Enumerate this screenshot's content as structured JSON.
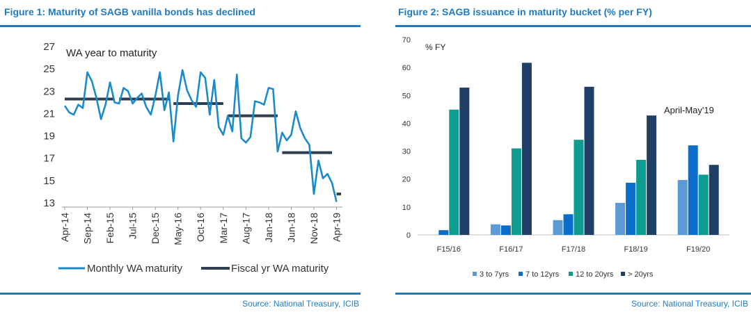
{
  "colors": {
    "accent": "#1F7BC1",
    "monthly_line": "#1B8AC9",
    "fiscal_line": "#2E3D4F",
    "bar_3_7": "#5B9BD5",
    "bar_7_12": "#0B6FC9",
    "bar_12_20": "#0E9C91",
    "bar_gt20": "#1F3F66"
  },
  "figure1": {
    "title": "Figure 1: Maturity of SAGB vanilla bonds has declined",
    "source": "Source: National Treasury, ICIB"
  },
  "figure2": {
    "title": "Figure 2: SAGB issuance in maturity bucket (% per FY)",
    "source": "Source: National Treasury, ICIB"
  },
  "chart_data": [
    {
      "type": "line",
      "annotation": "WA year to maturity",
      "ylim": [
        13,
        27
      ],
      "yticks": [
        "13",
        "15",
        "17",
        "19",
        "21",
        "23",
        "25",
        "27"
      ],
      "xtick_labels": [
        "Apr-14",
        "Sep-14",
        "Feb-15",
        "Jul-15",
        "Dec-15",
        "May-16",
        "Oct-16",
        "Mar-17",
        "Aug-17",
        "Jan-18",
        "Jun-18",
        "Nov-18",
        "Apr-19"
      ],
      "x_start": "Apr-14",
      "x_end": "May-19",
      "legend_position": "bottom",
      "series": [
        {
          "name": "Monthly WA maturity",
          "values": [
            21.7,
            21.1,
            20.9,
            21.8,
            21.5,
            24.7,
            23.9,
            22.4,
            20.5,
            21.8,
            23.8,
            22.0,
            21.9,
            23.3,
            23.0,
            21.9,
            22.4,
            22.8,
            21.6,
            20.9,
            22.6,
            24.7,
            21.3,
            22.9,
            18.5,
            22.6,
            24.9,
            23.1,
            22.2,
            21.6,
            24.7,
            24.2,
            20.9,
            24.0,
            19.8,
            19.1,
            20.8,
            19.4,
            24.5,
            18.8,
            18.4,
            18.9,
            22.1,
            22.0,
            21.8,
            23.3,
            23.2,
            17.6,
            19.3,
            18.6,
            19.1,
            21.2,
            19.7,
            18.8,
            18.2,
            13.8,
            16.8,
            15.2,
            15.6,
            14.8,
            13.1
          ]
        },
        {
          "name": "Fiscal yr WA maturity",
          "segments": [
            {
              "from": "Apr-14",
              "to": "Mar-15",
              "value": 22.3
            },
            {
              "from": "Apr-15",
              "to": "Mar-16",
              "value": 22.3
            },
            {
              "from": "Apr-16",
              "to": "Mar-17",
              "value": 21.9
            },
            {
              "from": "Apr-17",
              "to": "Mar-18",
              "value": 20.8
            },
            {
              "from": "Apr-18",
              "to": "Mar-19",
              "value": 17.5
            },
            {
              "from": "Apr-19",
              "to": "May-19",
              "value": 13.8
            }
          ]
        }
      ]
    },
    {
      "type": "bar",
      "ylabel": "% FY",
      "annotation": "April-May'19",
      "ylim": [
        0,
        70
      ],
      "yticks": [
        "0",
        "10",
        "20",
        "30",
        "40",
        "50",
        "60",
        "70"
      ],
      "categories": [
        "F15/16",
        "F16/17",
        "F17/18",
        "F18/19",
        "F19/20"
      ],
      "legend_position": "bottom",
      "series": [
        {
          "name": "3 to 7yrs",
          "values": [
            0,
            3.8,
            5.3,
            11.5,
            19.7
          ]
        },
        {
          "name": "7 to 12yrs",
          "values": [
            1.7,
            3.4,
            7.4,
            18.7,
            32.1
          ]
        },
        {
          "name": "12 to 20yrs",
          "values": [
            44.9,
            31.0,
            34.1,
            26.9,
            21.6
          ]
        },
        {
          "name": "> 20yrs",
          "values": [
            52.8,
            61.7,
            53.1,
            42.8,
            25.1
          ]
        }
      ]
    }
  ]
}
